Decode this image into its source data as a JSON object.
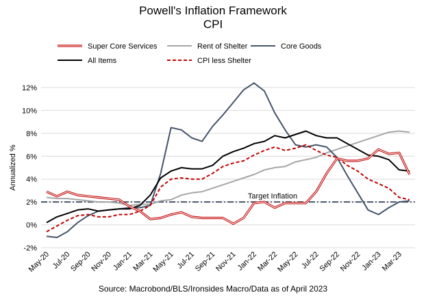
{
  "chart_data": {
    "type": "line",
    "title": "Powell's Inflation Framework",
    "subtitle": "CPI",
    "ylabel": "Annualized %",
    "xlabel": "",
    "source": "Source: Macrobond/BLS/Ironsides Macro/Data as of April 2023",
    "ylim": [
      -2,
      12
    ],
    "yticks": [
      "-2%",
      "0%",
      "2%",
      "4%",
      "6%",
      "8%",
      "10%",
      "12%"
    ],
    "ytick_values": [
      -2,
      0,
      2,
      4,
      6,
      8,
      10,
      12
    ],
    "x_tick_labels": [
      "May-20",
      "Jul-20",
      "Sep-20",
      "Nov-20",
      "Jan-21",
      "Mar-21",
      "May-21",
      "Jul-21",
      "Sep-21",
      "Nov-21",
      "Jan-22",
      "Mar-22",
      "May-22",
      "Jul-22",
      "Sep-22",
      "Nov-22",
      "Jan-23",
      "Mar-23"
    ],
    "x": [
      "May-20",
      "Jun-20",
      "Jul-20",
      "Aug-20",
      "Sep-20",
      "Oct-20",
      "Nov-20",
      "Dec-20",
      "Jan-21",
      "Feb-21",
      "Mar-21",
      "Apr-21",
      "May-21",
      "Jun-21",
      "Jul-21",
      "Aug-21",
      "Sep-21",
      "Oct-21",
      "Nov-21",
      "Dec-21",
      "Jan-22",
      "Feb-22",
      "Mar-22",
      "Apr-22",
      "May-22",
      "Jun-22",
      "Jul-22",
      "Aug-22",
      "Sep-22",
      "Oct-22",
      "Nov-22",
      "Dec-22",
      "Jan-23",
      "Feb-23",
      "Mar-23",
      "Apr-23"
    ],
    "grid": true,
    "legend_position": "top",
    "series": [
      {
        "name": "Super Core Services",
        "color": "#c00000",
        "style": "double-red",
        "values": [
          2.9,
          2.5,
          2.9,
          2.6,
          2.5,
          2.4,
          2.3,
          2.2,
          1.6,
          1.2,
          0.5,
          0.6,
          0.9,
          1.1,
          0.7,
          0.6,
          0.6,
          0.6,
          0.1,
          0.6,
          1.9,
          2.0,
          1.5,
          1.9,
          1.9,
          1.9,
          2.9,
          4.5,
          5.8,
          5.6,
          5.6,
          5.8,
          6.6,
          6.2,
          6.3,
          4.4
        ]
      },
      {
        "name": "Rent of Shelter",
        "color": "#a6a6a6",
        "style": "solid",
        "values": [
          2.4,
          2.3,
          2.3,
          2.2,
          2.1,
          2.0,
          2.0,
          1.9,
          1.7,
          1.8,
          1.8,
          2.1,
          2.2,
          2.6,
          2.8,
          2.9,
          3.2,
          3.5,
          3.8,
          4.1,
          4.4,
          4.8,
          5.0,
          5.1,
          5.5,
          5.7,
          5.9,
          6.3,
          6.6,
          6.9,
          7.2,
          7.5,
          7.8,
          8.1,
          8.2,
          8.1
        ]
      },
      {
        "name": "Core Goods",
        "color": "#44546a",
        "style": "solid",
        "values": [
          -1.0,
          -1.1,
          -0.6,
          0.2,
          0.8,
          1.2,
          1.3,
          1.4,
          1.5,
          1.5,
          1.7,
          4.5,
          8.5,
          8.3,
          7.6,
          7.3,
          8.6,
          9.6,
          10.7,
          11.8,
          12.4,
          11.7,
          9.8,
          8.3,
          7.0,
          6.8,
          7.0,
          6.8,
          5.9,
          4.3,
          2.8,
          1.3,
          0.9,
          1.5,
          2.0,
          2.1
        ]
      },
      {
        "name": "All Items",
        "color": "#000000",
        "style": "solid",
        "values": [
          0.2,
          0.7,
          1.0,
          1.3,
          1.4,
          1.2,
          1.3,
          1.4,
          1.4,
          1.7,
          2.6,
          4.1,
          4.7,
          5.0,
          4.9,
          4.9,
          5.2,
          6.0,
          6.4,
          6.7,
          7.1,
          7.3,
          7.8,
          7.6,
          7.9,
          8.2,
          7.8,
          7.6,
          7.6,
          7.1,
          6.6,
          6.1,
          6.0,
          5.7,
          4.8,
          4.7
        ]
      },
      {
        "name": "CPI less Shelter",
        "color": "#c00000",
        "style": "dashed",
        "values": [
          -0.6,
          -0.1,
          0.4,
          0.8,
          0.9,
          0.7,
          0.7,
          0.9,
          0.9,
          1.2,
          1.7,
          3.3,
          4.0,
          4.1,
          4.0,
          4.0,
          4.5,
          5.1,
          5.4,
          5.6,
          6.1,
          6.5,
          6.8,
          6.5,
          6.7,
          7.0,
          6.5,
          6.1,
          5.9,
          5.2,
          4.7,
          4.0,
          3.6,
          3.2,
          2.4,
          2.2
        ]
      }
    ],
    "reference_line": {
      "label": "Target Inflation",
      "value": 2,
      "color": "#44546a",
      "style": "dash-dot"
    }
  }
}
